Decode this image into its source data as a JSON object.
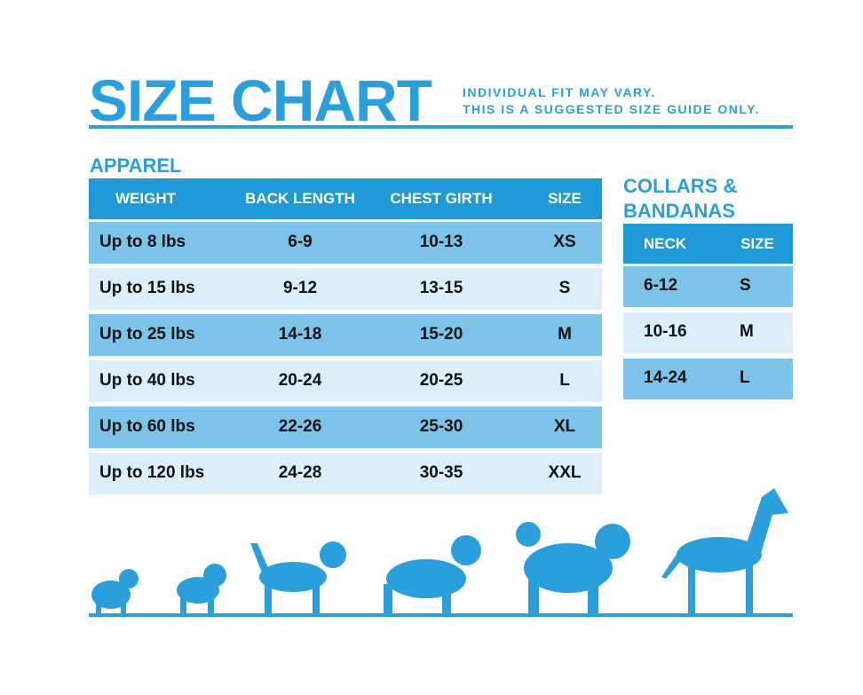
{
  "header": {
    "title": "SIZE CHART",
    "note": [
      "INDIVIDUAL FIT MAY VARY.",
      "THIS IS A SUGGESTED SIZE GUIDE ONLY."
    ]
  },
  "apparel": {
    "title": "APPAREL",
    "columns": [
      "WEIGHT",
      "BACK LENGTH",
      "CHEST GIRTH",
      "SIZE"
    ],
    "rows": [
      [
        "Up to 8 lbs",
        "6-9",
        "10-13",
        "XS"
      ],
      [
        "Up to 15 lbs",
        "9-12",
        "13-15",
        "S"
      ],
      [
        "Up to 25 lbs",
        "14-18",
        "15-20",
        "M"
      ],
      [
        "Up to 40 lbs",
        "20-24",
        "20-25",
        "L"
      ],
      [
        "Up to 60 lbs",
        "22-26",
        "25-30",
        "XL"
      ],
      [
        "Up to 120 lbs",
        "24-28",
        "30-35",
        "XXL"
      ]
    ]
  },
  "collars": {
    "title": [
      "COLLARS &",
      "BANDANAS"
    ],
    "columns": [
      "NECK",
      "SIZE"
    ],
    "rows": [
      [
        "6-12",
        "S"
      ],
      [
        "10-16",
        "M"
      ],
      [
        "14-24",
        "L"
      ]
    ]
  }
}
